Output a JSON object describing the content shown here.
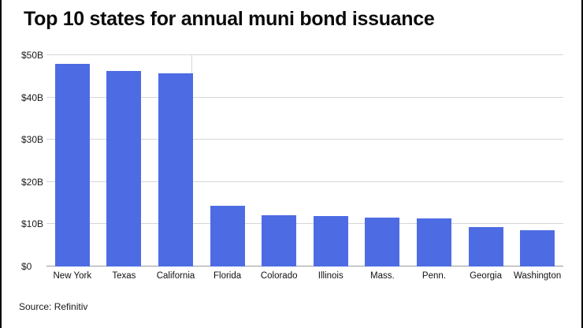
{
  "title": "Top 10 states for annual muni bond issuance",
  "source": "Source: Refinitiv",
  "colors": {
    "bar": "#4d6ce3",
    "grid": "#d6d6d6",
    "axis": "#9a9a9a",
    "text": "#111111"
  },
  "chart_data": {
    "type": "bar",
    "categories": [
      "New York",
      "Texas",
      "California",
      "Florida",
      "Colorado",
      "Illinois",
      "Mass.",
      "Penn.",
      "Georgia",
      "Washington"
    ],
    "values": [
      47.9,
      46.3,
      45.8,
      14.4,
      12.2,
      12.0,
      11.5,
      11.3,
      9.4,
      8.5
    ],
    "title": "Top 10 states for annual muni bond issuance",
    "xlabel": "",
    "ylabel": "",
    "ylim": [
      0,
      50
    ],
    "yticks": [
      "$0",
      "$10B",
      "$20B",
      "$30B",
      "$40B",
      "$50B"
    ],
    "grid": "horizontal",
    "legend": "none",
    "units": "billions USD"
  }
}
